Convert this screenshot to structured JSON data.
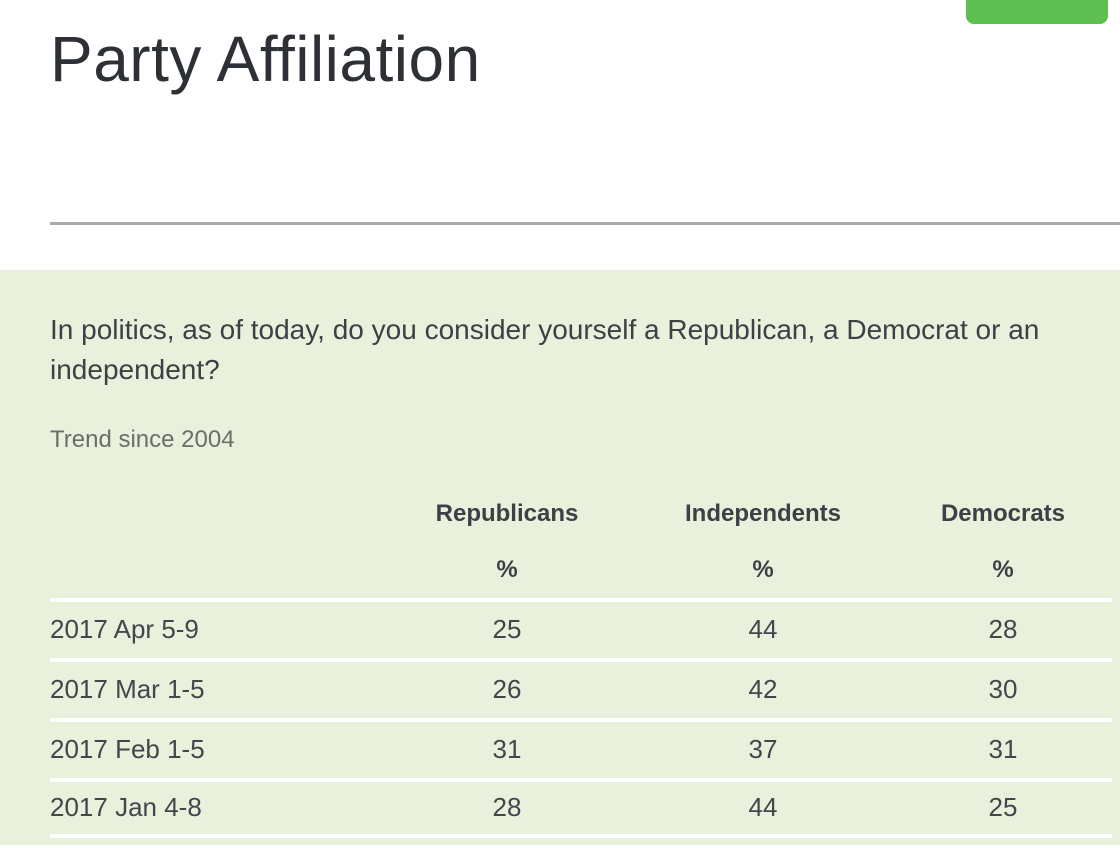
{
  "header": {
    "action_button_color": "#5fbe52"
  },
  "page": {
    "title": "Party Affiliation",
    "question": "In politics, as of today, do you consider yourself a Republican, a Democrat or an independent?",
    "trend_note": "Trend since 2004"
  },
  "table": {
    "columns": [
      "Republicans",
      "Independents",
      "Democrats"
    ],
    "unit_row": [
      "%",
      "%",
      "%"
    ],
    "rows": [
      {
        "date": "2017 Apr 5-9",
        "values": [
          "25",
          "44",
          "28"
        ]
      },
      {
        "date": "2017 Mar 1-5",
        "values": [
          "26",
          "42",
          "30"
        ]
      },
      {
        "date": "2017 Feb 1-5",
        "values": [
          "31",
          "37",
          "31"
        ]
      },
      {
        "date": "2017 Jan 4-8",
        "values": [
          "28",
          "44",
          "25"
        ]
      }
    ]
  },
  "colors": {
    "section_background": "#e9f0dc",
    "accent_green": "#5fbe52",
    "divider_gray": "#a9a9a9",
    "row_separator": "#ffffff"
  }
}
